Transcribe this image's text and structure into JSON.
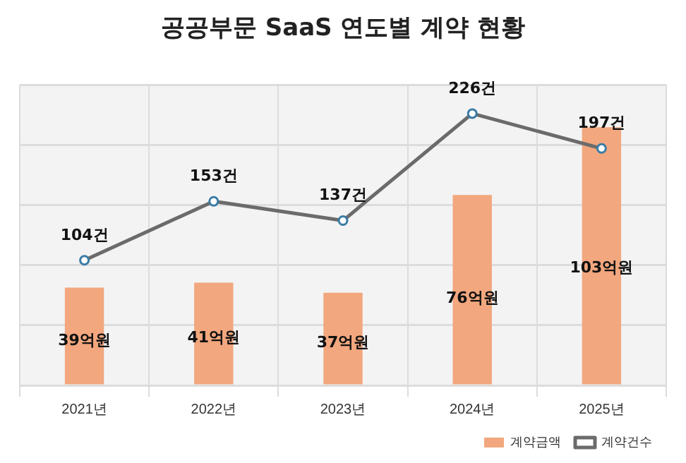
{
  "chart_data": {
    "type": "bar",
    "title": "공공부문 SaaS 연도별 계약 현황",
    "categories": [
      "2021년",
      "2022년",
      "2023년",
      "2024년",
      "2025년"
    ],
    "series": [
      {
        "name": "계약금액",
        "color": "#f2a77e",
        "values": [
          39,
          41,
          37,
          76,
          103
        ],
        "value_labels": [
          "39억원",
          "41억원",
          "37억원",
          "76억원",
          "103억원"
        ]
      },
      {
        "name": "계약건수",
        "type": "line",
        "axis": "y2",
        "color": "#6b6b6b",
        "marker": "circle",
        "values": [
          104,
          153,
          137,
          226,
          197
        ],
        "value_labels": [
          "104건",
          "153건",
          "137건",
          "226건",
          "197건"
        ]
      }
    ],
    "ylim": [
      0,
      120
    ],
    "yticks": [
      {
        "value": 0,
        "label": null
      },
      {
        "value": 24,
        "label": null
      },
      {
        "value": 48,
        "label": null
      },
      {
        "value": 72,
        "label": null
      },
      {
        "value": 96,
        "label": null
      },
      {
        "value": 120,
        "label": null
      }
    ],
    "y2lim": [
      0,
      250
    ],
    "tick_labels": "x",
    "grid": true,
    "legend": "bottom right"
  }
}
